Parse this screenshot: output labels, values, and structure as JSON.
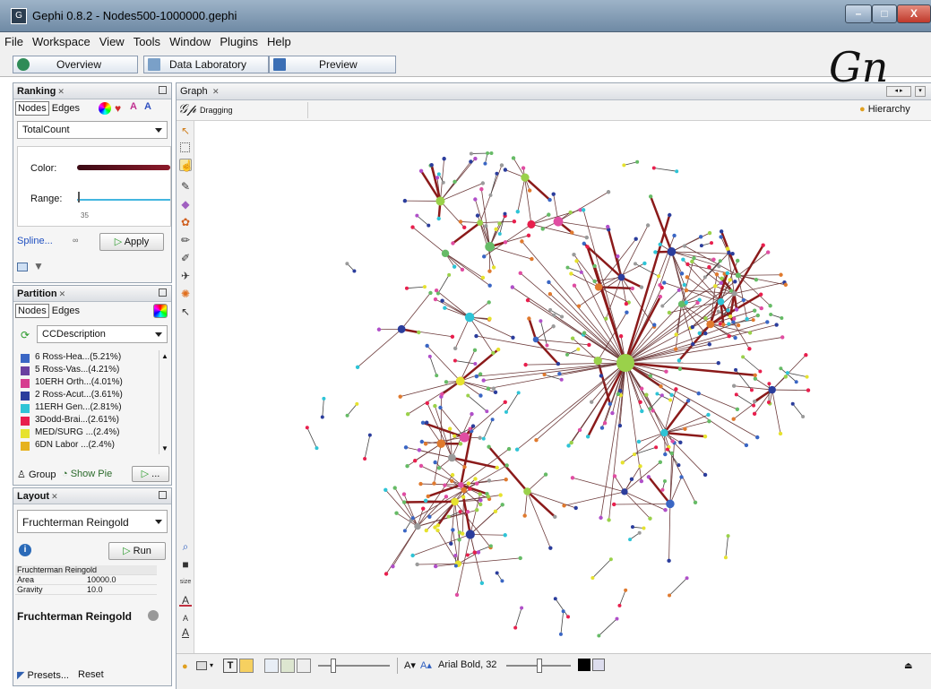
{
  "window": {
    "title": "Gephi 0.8.2 - Nodes500-1000000.gephi",
    "controls": [
      "–",
      "□",
      "X"
    ]
  },
  "menu": [
    "File",
    "Workspace",
    "View",
    "Tools",
    "Window",
    "Plugins",
    "Help"
  ],
  "modes": [
    {
      "label": "Overview",
      "icon": "overview-icon",
      "color": "#2e8b57"
    },
    {
      "label": "Data Laboratory",
      "icon": "table-icon",
      "color": "#7aa0c8"
    },
    {
      "label": "Preview",
      "icon": "monitor-icon",
      "color": "#3b6fb5"
    }
  ],
  "ranking": {
    "title": "Ranking",
    "tabs": [
      "Nodes",
      "Edges"
    ],
    "attribute": "TotalCount",
    "color_label": "Color:",
    "range_label": "Range:",
    "range_value": "35",
    "spline_label": "Spline...",
    "apply_label": "Apply"
  },
  "partition": {
    "title": "Partition",
    "tabs": [
      "Nodes",
      "Edges"
    ],
    "attribute": "CCDescription",
    "items": [
      {
        "label": "6 Ross-Hea...(5.21%)",
        "color": "#3a66c4"
      },
      {
        "label": "5 Ross-Vas...(4.21%)",
        "color": "#6b3fa0"
      },
      {
        "label": "10ERH Orth...(4.01%)",
        "color": "#d63b8f"
      },
      {
        "label": "2 Ross-Acut...(3.61%)",
        "color": "#2b3d9c"
      },
      {
        "label": "11ERH Gen...(2.81%)",
        "color": "#2ec4d6"
      },
      {
        "label": "3Dodd-Brai...(2.61%)",
        "color": "#e81f4d"
      },
      {
        "label": "MED/SURG ...(2.4%)",
        "color": "#e6e22e"
      },
      {
        "label": "6DN Labor ...(2.4%)",
        "color": "#e6b21e"
      }
    ],
    "group_label": "Group",
    "show_pie_label": "Show Pie"
  },
  "layout": {
    "title": "Layout",
    "algorithm": "Fruchterman Reingold",
    "run_label": "Run",
    "props": [
      {
        "name": "Fruchterman Reingold",
        "value": ""
      },
      {
        "name": "Area",
        "value": "10000.0"
      },
      {
        "name": "Gravity",
        "value": "10.0"
      }
    ],
    "description_title": "Fruchterman Reingold",
    "presets_label": "Presets...",
    "reset_label": "Reset"
  },
  "graph": {
    "tab": "Graph",
    "mode_label": "Dragging",
    "hierarchy_label": "Hierarchy",
    "bottom": {
      "font_label": "Arial Bold, 32",
      "size_label": "size"
    }
  }
}
